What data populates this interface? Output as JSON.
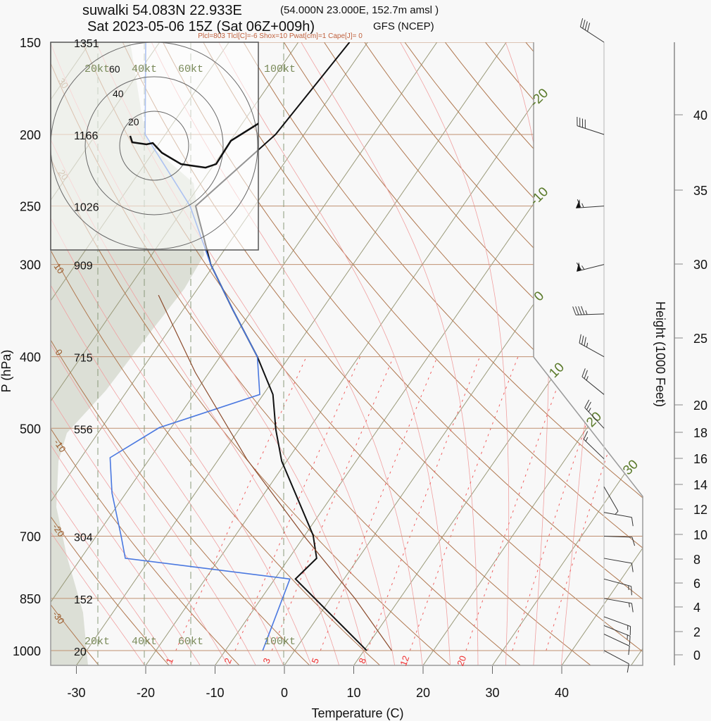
{
  "header": {
    "title": "suwalki 54.083N 22.933E",
    "title_note": "(54.000N 23.000E, 152.7m amsl )",
    "subtitle": "Sat 2023-05-06 15Z (Sat 06Z+009h)",
    "model": "GFS (NCEP)",
    "indices": "Plcl=803 Tlcl[C]=-6 Shox=10 Pwat[cm]=1 Cape[J]= 0"
  },
  "chart_data": {
    "type": "line",
    "subtype": "skew-T log-p",
    "xlabel": "Temperature (C)",
    "ylabel": "P (hPa)",
    "y2label": "Height (1000 Feet)",
    "xlim": [
      -33,
      46
    ],
    "ylim": [
      1048,
      150
    ],
    "y_scale": "log",
    "x_ticks": [
      "-30",
      "-20",
      "-10",
      "0",
      "10",
      "20",
      "30",
      "40"
    ],
    "pressure_levels": [
      {
        "p": "150",
        "height": "1351"
      },
      {
        "p": "200",
        "height": "1166"
      },
      {
        "p": "250",
        "height": "1026"
      },
      {
        "p": "300",
        "height": "909"
      },
      {
        "p": "400",
        "height": "715"
      },
      {
        "p": "500",
        "height": "556"
      },
      {
        "p": "700",
        "height": "304"
      },
      {
        "p": "850",
        "height": "152"
      },
      {
        "p": "1000",
        "height": "20"
      }
    ],
    "height_ticks_kft": [
      "0",
      "2",
      "4",
      "6",
      "8",
      "10",
      "12",
      "14",
      "16",
      "18",
      "20",
      "25",
      "30",
      "35",
      "40"
    ],
    "isotherm_labels": [
      "-20",
      "-10",
      "0",
      "10",
      "20",
      "30"
    ],
    "dry_adiabat_labels": [
      "30",
      "20",
      "10",
      "0",
      "-10",
      "-20",
      "-30"
    ],
    "mixing_ratio_labels": [
      "1",
      "2",
      "3",
      "5",
      "8",
      "12",
      "20"
    ],
    "wind_ref_labels": [
      "20kt",
      "40kt",
      "60kt",
      "100kt"
    ],
    "series": [
      {
        "role": "temperature",
        "color": "#111111",
        "points": [
          [
            1000,
            10.4
          ],
          [
            800,
            -7.0
          ],
          [
            750,
            -6.0
          ],
          [
            698,
            -8.8
          ],
          [
            554,
            -20.7
          ],
          [
            502,
            -24.7
          ],
          [
            450,
            -28.6
          ],
          [
            400,
            -34.6
          ],
          [
            345,
            -42.9
          ],
          [
            300,
            -50.5
          ],
          [
            250,
            -58.5
          ],
          [
            200,
            -54.1
          ],
          [
            150,
            -52.6
          ]
        ]
      },
      {
        "role": "dewpoint",
        "color": "#4a78e0",
        "points": [
          [
            1000,
            -4.6
          ],
          [
            800,
            -7.8
          ],
          [
            750,
            -33.6
          ],
          [
            700,
            -36.4
          ],
          [
            612,
            -42.0
          ],
          [
            548,
            -45.8
          ],
          [
            499,
            -41.7
          ],
          [
            450,
            -30.5
          ],
          [
            400,
            -34.6
          ],
          [
            345,
            -42.9
          ],
          [
            300,
            -50.5
          ],
          [
            250,
            -59.3
          ],
          [
            200,
            -72.9
          ],
          [
            150,
            -82.0
          ]
        ]
      },
      {
        "role": "parcel",
        "color": "#8b4a2b",
        "points": [
          [
            1000,
            14.0
          ],
          [
            850,
            3.5
          ],
          [
            700,
            -10.0
          ],
          [
            550,
            -26.0
          ],
          [
            420,
            -42.0
          ],
          [
            330,
            -55.0
          ]
        ]
      }
    ],
    "winds": [
      {
        "p": 150,
        "dir": 303,
        "kt": 40
      },
      {
        "p": 200,
        "dir": 288,
        "kt": 40
      },
      {
        "p": 250,
        "dir": 266,
        "kt": 65
      },
      {
        "p": 300,
        "dir": 256,
        "kt": 65
      },
      {
        "p": 350,
        "dir": 268,
        "kt": 45
      },
      {
        "p": 400,
        "dir": 299,
        "kt": 35
      },
      {
        "p": 450,
        "dir": 309,
        "kt": 25
      },
      {
        "p": 500,
        "dir": 317,
        "kt": 25
      },
      {
        "p": 550,
        "dir": 314,
        "kt": 15
      },
      {
        "p": 600,
        "dir": 150,
        "kt": 5
      },
      {
        "p": 650,
        "dir": 100,
        "kt": 10
      },
      {
        "p": 700,
        "dir": 92,
        "kt": 10
      },
      {
        "p": 750,
        "dir": 100,
        "kt": 10
      },
      {
        "p": 800,
        "dir": 105,
        "kt": 15
      },
      {
        "p": 850,
        "dir": 100,
        "kt": 15
      },
      {
        "p": 900,
        "dir": 110,
        "kt": 15
      },
      {
        "p": 925,
        "dir": 112,
        "kt": 15
      },
      {
        "p": 950,
        "dir": 115,
        "kt": 10
      },
      {
        "p": 1000,
        "dir": 118,
        "kt": 10
      }
    ],
    "hodograph": {
      "rings_kt": [
        "20",
        "40",
        "60"
      ],
      "uv_kt": [
        [
          -13.9,
          5.7
        ],
        [
          -12.7,
          2.0
        ],
        [
          -4.5,
          0.8
        ],
        [
          -0.8,
          1.6
        ],
        [
          4.5,
          -4.1
        ],
        [
          15.5,
          -10.6
        ],
        [
          29.8,
          -12.7
        ],
        [
          35.9,
          -10.6
        ],
        [
          44.5,
          2.9
        ],
        [
          60.8,
          13.1
        ]
      ]
    },
    "colors": {
      "isotherm": "#9a9a7a",
      "dry_adiabat": "#b07850",
      "moist_adiabat": "#f0a0a0",
      "mixing_ratio": "#f06060",
      "isobar": "#c09070",
      "shade": "#dcdfd6",
      "iso_label": "#5a7a2a"
    }
  }
}
